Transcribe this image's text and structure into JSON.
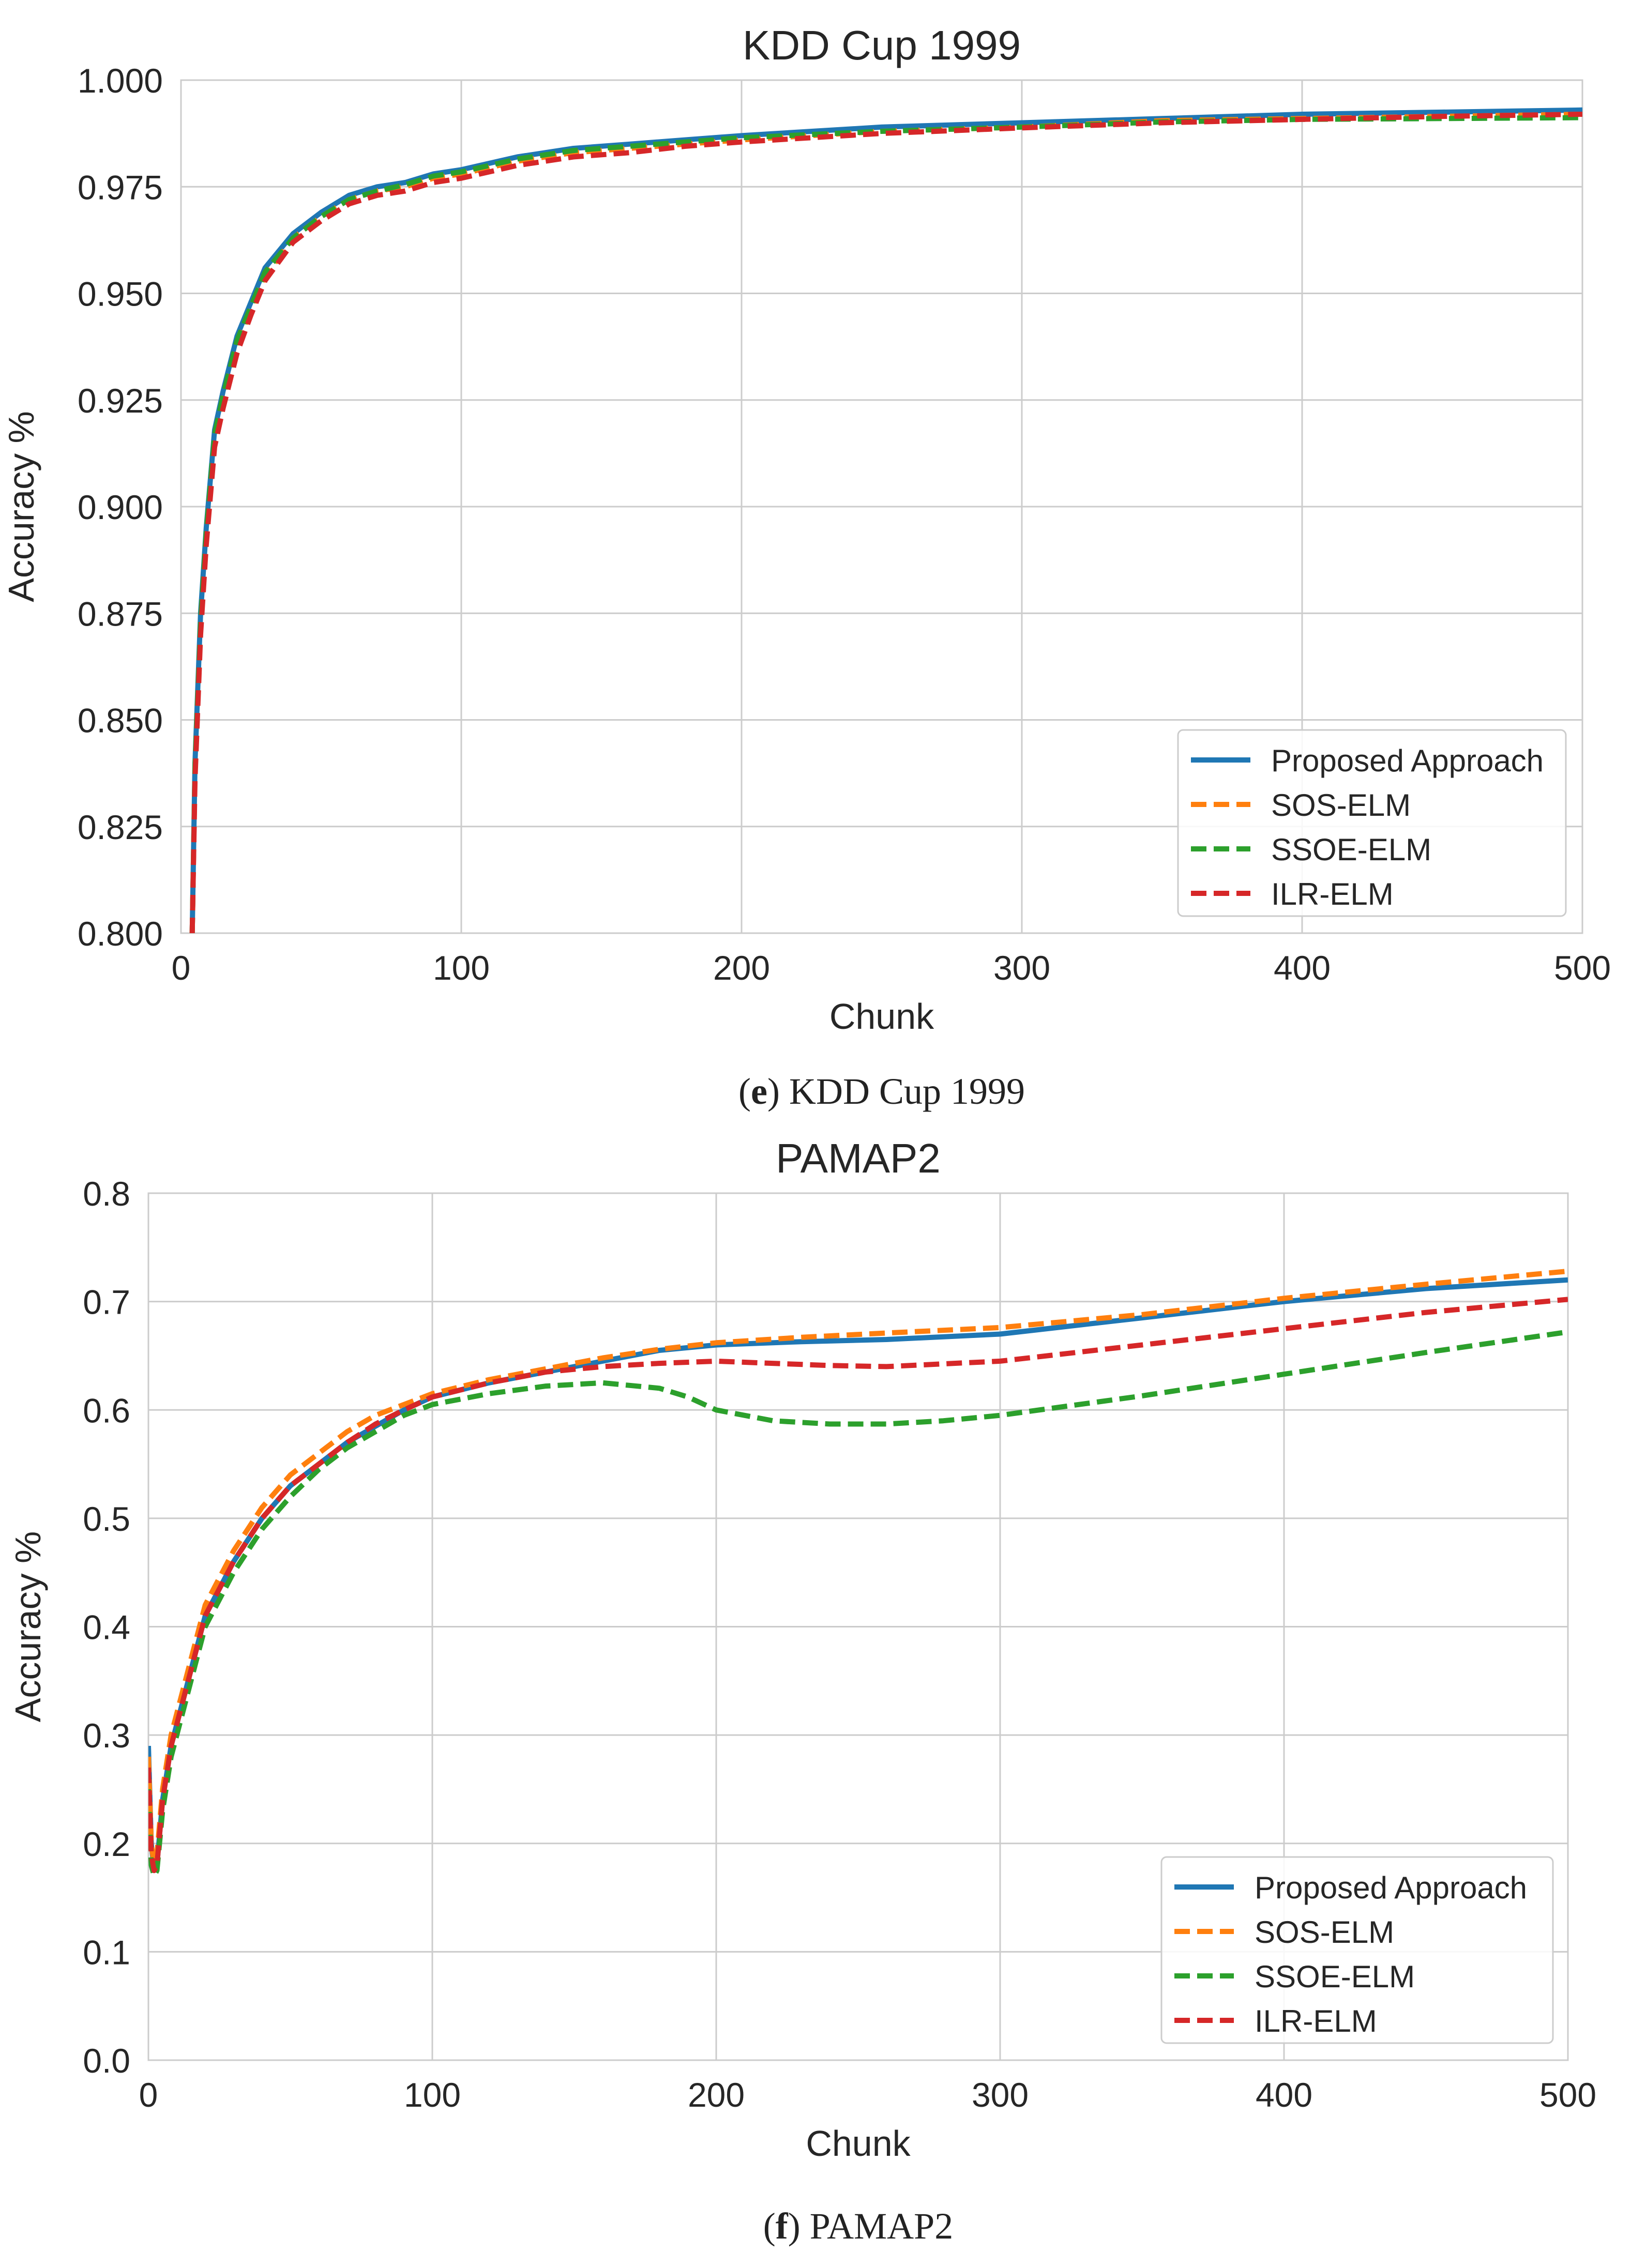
{
  "chart_data": [
    {
      "type": "line",
      "title": "KDD Cup 1999",
      "xlabel": "Chunk",
      "ylabel": "Accuracy %",
      "xlim": [
        0,
        500
      ],
      "ylim": [
        0.8,
        1.0
      ],
      "xticks": [
        0,
        100,
        200,
        300,
        400,
        500
      ],
      "xtick_labels": [
        "0",
        "100",
        "200",
        "300",
        "400",
        "500"
      ],
      "yticks": [
        0.8,
        0.825,
        0.85,
        0.875,
        0.9,
        0.925,
        0.95,
        0.975,
        1.0
      ],
      "ytick_labels": [
        "0.800",
        "0.825",
        "0.850",
        "0.875",
        "0.900",
        "0.925",
        "0.950",
        "0.975",
        "1.000"
      ],
      "grid": true,
      "legend_position": "bottom-right",
      "caption": {
        "letter": "e",
        "text": " KDD Cup 1999"
      },
      "series": [
        {
          "name": "Proposed Approach",
          "color": "#1f77b4",
          "dash": "solid",
          "x": [
            4,
            5,
            7,
            9,
            12,
            15,
            20,
            25,
            30,
            40,
            50,
            60,
            70,
            80,
            90,
            100,
            120,
            140,
            160,
            180,
            200,
            250,
            300,
            350,
            400,
            450,
            500
          ],
          "y": [
            0.8,
            0.84,
            0.875,
            0.895,
            0.918,
            0.927,
            0.94,
            0.948,
            0.956,
            0.964,
            0.969,
            0.973,
            0.975,
            0.976,
            0.978,
            0.979,
            0.982,
            0.984,
            0.985,
            0.986,
            0.987,
            0.989,
            0.99,
            0.991,
            0.992,
            0.9925,
            0.993
          ]
        },
        {
          "name": "SOS-ELM",
          "color": "#ff7f0e",
          "dash": "dashed",
          "x": [
            4,
            5,
            7,
            9,
            12,
            15,
            20,
            25,
            30,
            40,
            50,
            60,
            70,
            80,
            90,
            100,
            120,
            140,
            160,
            180,
            200,
            250,
            300,
            350,
            400,
            450,
            500
          ],
          "y": [
            0.8,
            0.838,
            0.872,
            0.893,
            0.916,
            0.925,
            0.938,
            0.946,
            0.954,
            0.963,
            0.968,
            0.972,
            0.974,
            0.975,
            0.977,
            0.978,
            0.981,
            0.983,
            0.984,
            0.985,
            0.986,
            0.988,
            0.989,
            0.9905,
            0.991,
            0.9915,
            0.992
          ]
        },
        {
          "name": "SSOE-ELM",
          "color": "#2ca02c",
          "dash": "dashed",
          "x": [
            4,
            5,
            7,
            9,
            12,
            15,
            20,
            25,
            30,
            40,
            50,
            60,
            70,
            80,
            90,
            100,
            120,
            140,
            160,
            180,
            200,
            250,
            300,
            350,
            400,
            450,
            500
          ],
          "y": [
            0.8,
            0.839,
            0.873,
            0.894,
            0.917,
            0.926,
            0.939,
            0.947,
            0.955,
            0.963,
            0.968,
            0.972,
            0.974,
            0.9755,
            0.9775,
            0.9785,
            0.9815,
            0.9835,
            0.9845,
            0.9855,
            0.9865,
            0.988,
            0.989,
            0.9902,
            0.9908,
            0.991,
            0.9912
          ]
        },
        {
          "name": "ILR-ELM",
          "color": "#d62728",
          "dash": "dashed",
          "x": [
            4,
            5,
            7,
            9,
            12,
            15,
            20,
            25,
            30,
            40,
            50,
            60,
            70,
            80,
            90,
            100,
            120,
            140,
            160,
            180,
            200,
            250,
            300,
            350,
            400,
            450,
            500
          ],
          "y": [
            0.8,
            0.836,
            0.87,
            0.891,
            0.914,
            0.923,
            0.936,
            0.945,
            0.953,
            0.962,
            0.967,
            0.971,
            0.973,
            0.974,
            0.976,
            0.977,
            0.98,
            0.982,
            0.983,
            0.9845,
            0.9855,
            0.9875,
            0.9888,
            0.99,
            0.9908,
            0.9915,
            0.992
          ]
        }
      ]
    },
    {
      "type": "line",
      "title": "PAMAP2",
      "xlabel": "Chunk",
      "ylabel": "Accuracy %",
      "xlim": [
        0,
        500
      ],
      "ylim": [
        0.0,
        0.8
      ],
      "xticks": [
        0,
        100,
        200,
        300,
        400,
        500
      ],
      "xtick_labels": [
        "0",
        "100",
        "200",
        "300",
        "400",
        "500"
      ],
      "yticks": [
        0.0,
        0.1,
        0.2,
        0.3,
        0.4,
        0.5,
        0.6,
        0.7,
        0.8
      ],
      "ytick_labels": [
        "0.0",
        "0.1",
        "0.2",
        "0.3",
        "0.4",
        "0.5",
        "0.6",
        "0.7",
        "0.8"
      ],
      "grid": true,
      "legend_position": "bottom-right",
      "caption": {
        "letter": "f",
        "text": " PAMAP2"
      },
      "series": [
        {
          "name": "Proposed Approach",
          "color": "#1f77b4",
          "dash": "solid",
          "x": [
            0,
            1,
            2,
            3,
            5,
            8,
            12,
            16,
            20,
            30,
            40,
            50,
            60,
            70,
            80,
            90,
            100,
            120,
            140,
            160,
            180,
            200,
            230,
            260,
            300,
            350,
            400,
            450,
            500
          ],
          "y": [
            0.29,
            0.2,
            0.175,
            0.18,
            0.24,
            0.29,
            0.33,
            0.37,
            0.41,
            0.46,
            0.5,
            0.53,
            0.55,
            0.57,
            0.585,
            0.6,
            0.612,
            0.625,
            0.635,
            0.645,
            0.655,
            0.66,
            0.663,
            0.665,
            0.67,
            0.685,
            0.7,
            0.712,
            0.72
          ]
        },
        {
          "name": "SOS-ELM",
          "color": "#ff7f0e",
          "dash": "dashed",
          "x": [
            0,
            1,
            2,
            3,
            5,
            8,
            12,
            16,
            20,
            30,
            40,
            50,
            60,
            70,
            80,
            90,
            100,
            120,
            140,
            160,
            180,
            200,
            230,
            260,
            300,
            350,
            400,
            450,
            500
          ],
          "y": [
            0.28,
            0.2,
            0.18,
            0.19,
            0.25,
            0.3,
            0.34,
            0.38,
            0.42,
            0.47,
            0.51,
            0.54,
            0.56,
            0.58,
            0.595,
            0.605,
            0.615,
            0.628,
            0.638,
            0.648,
            0.656,
            0.662,
            0.667,
            0.671,
            0.676,
            0.688,
            0.703,
            0.716,
            0.728
          ]
        },
        {
          "name": "SSOE-ELM",
          "color": "#2ca02c",
          "dash": "dashed",
          "x": [
            0,
            1,
            2,
            3,
            5,
            8,
            12,
            16,
            20,
            30,
            40,
            50,
            60,
            70,
            80,
            90,
            100,
            120,
            140,
            160,
            180,
            190,
            200,
            220,
            240,
            260,
            280,
            300,
            350,
            400,
            450,
            500
          ],
          "y": [
            0.25,
            0.18,
            0.17,
            0.175,
            0.23,
            0.28,
            0.32,
            0.36,
            0.4,
            0.45,
            0.49,
            0.52,
            0.545,
            0.565,
            0.58,
            0.595,
            0.605,
            0.615,
            0.622,
            0.625,
            0.62,
            0.612,
            0.6,
            0.59,
            0.587,
            0.587,
            0.59,
            0.595,
            0.613,
            0.633,
            0.653,
            0.672
          ]
        },
        {
          "name": "ILR-ELM",
          "color": "#d62728",
          "dash": "dashed",
          "x": [
            0,
            1,
            2,
            3,
            5,
            8,
            12,
            16,
            20,
            30,
            40,
            50,
            60,
            70,
            80,
            90,
            100,
            120,
            140,
            160,
            180,
            200,
            220,
            240,
            260,
            300,
            350,
            400,
            450,
            500
          ],
          "y": [
            0.27,
            0.19,
            0.175,
            0.18,
            0.24,
            0.29,
            0.33,
            0.37,
            0.41,
            0.46,
            0.5,
            0.53,
            0.55,
            0.57,
            0.587,
            0.6,
            0.612,
            0.625,
            0.635,
            0.64,
            0.643,
            0.645,
            0.643,
            0.641,
            0.64,
            0.645,
            0.66,
            0.675,
            0.69,
            0.702
          ]
        }
      ]
    }
  ]
}
